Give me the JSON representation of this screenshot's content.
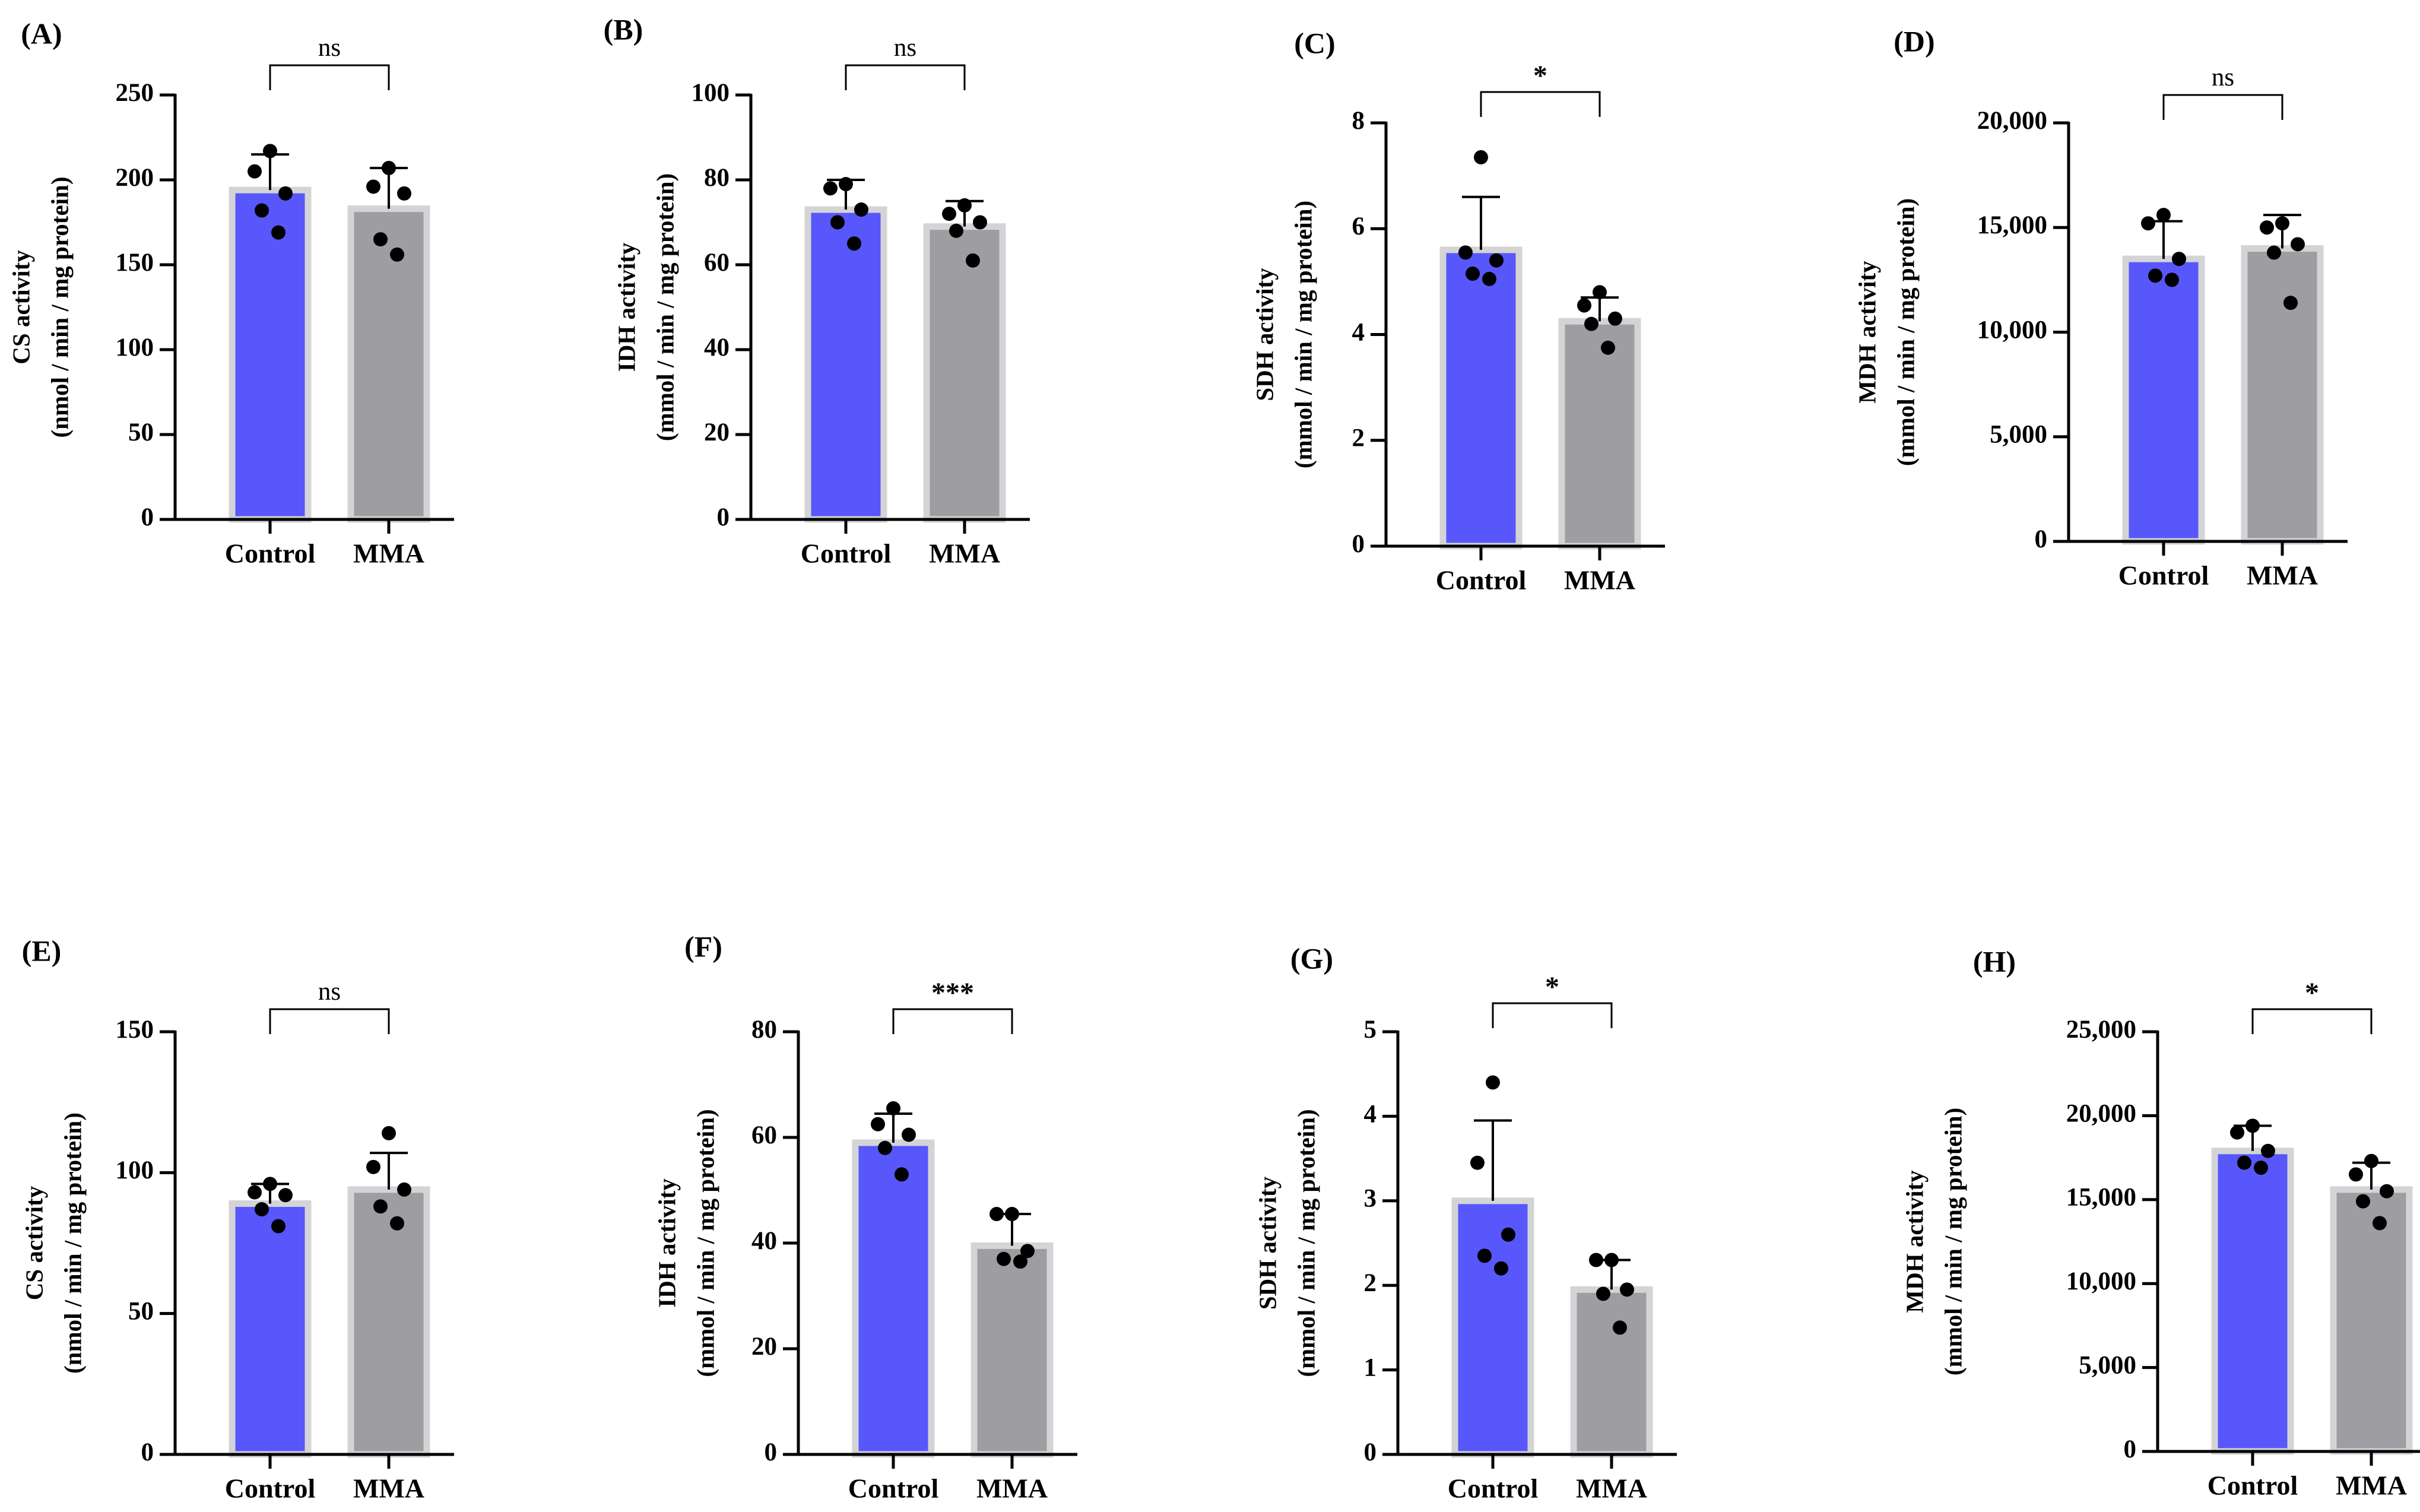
{
  "figure": {
    "colors": {
      "control": "#5757fb",
      "mma": "#9e9ea2",
      "bar_outline": "#d4d4d6",
      "ink": "#000000"
    },
    "panels": [
      {
        "label": "(A)",
        "ylabel1": "CS activity",
        "ylabel2": "(nmol / min / mg protein)",
        "significance": "ns"
      },
      {
        "label": "(B)",
        "ylabel1": "IDH activity",
        "ylabel2": "(mmol / min / mg protein)",
        "significance": "ns"
      },
      {
        "label": "(C)",
        "ylabel1": "SDH activity",
        "ylabel2": "(mmol / min / mg protein)",
        "significance": "*"
      },
      {
        "label": "(D)",
        "ylabel1": "MDH activity",
        "ylabel2": "(mmol / min / mg protein)",
        "significance": "ns"
      },
      {
        "label": "(E)",
        "ylabel1": "CS activity",
        "ylabel2": "(nmol / min / mg protein)",
        "significance": "ns"
      },
      {
        "label": "(F)",
        "ylabel1": "IDH activity",
        "ylabel2": "(mmol / min / mg protein)",
        "significance": "***"
      },
      {
        "label": "(G)",
        "ylabel1": "SDH activity",
        "ylabel2": "(mmol / min / mg protein)",
        "significance": "*"
      },
      {
        "label": "(H)",
        "ylabel1": "MDH activity",
        "ylabel2": "(mmol / min / mg protein)",
        "significance": "*"
      }
    ]
  },
  "chart_data": [
    {
      "type": "bar",
      "panel": "(A)",
      "categories": [
        "Control",
        "MMA"
      ],
      "ylabel": "CS activity (nmol / min / mg protein)",
      "ylim": [
        0,
        250
      ],
      "yticks": [
        0,
        50,
        100,
        150,
        200,
        250
      ],
      "ytick_labels": [
        "0",
        "50",
        "100",
        "150",
        "200",
        "250"
      ],
      "values": [
        194,
        183
      ],
      "sd": [
        21,
        24
      ],
      "points": [
        [
          217,
          205,
          192,
          182,
          169
        ],
        [
          207,
          196,
          192,
          165,
          156
        ]
      ],
      "significance": "ns"
    },
    {
      "type": "bar",
      "panel": "(B)",
      "categories": [
        "Control",
        "MMA"
      ],
      "ylabel": "IDH activity (mmol / min / mg protein)",
      "ylim": [
        0,
        100
      ],
      "yticks": [
        0,
        20,
        40,
        60,
        80,
        100
      ],
      "ytick_labels": [
        "0",
        "20",
        "40",
        "60",
        "80",
        "100"
      ],
      "values": [
        73,
        69
      ],
      "sd": [
        7,
        6
      ],
      "points": [
        [
          79,
          78,
          73,
          70,
          65
        ],
        [
          74,
          72,
          70,
          68,
          61
        ]
      ],
      "significance": "ns"
    },
    {
      "type": "bar",
      "panel": "(C)",
      "categories": [
        "Control",
        "MMA"
      ],
      "ylabel": "SDH activity (mmol / min / mg protein)",
      "ylim": [
        0,
        8
      ],
      "yticks": [
        0,
        2,
        4,
        6,
        8
      ],
      "ytick_labels": [
        "0",
        "2",
        "4",
        "6",
        "8"
      ],
      "values": [
        5.6,
        4.25
      ],
      "sd": [
        1.0,
        0.45
      ],
      "points": [
        [
          7.35,
          5.55,
          5.4,
          5.15,
          5.05
        ],
        [
          4.8,
          4.55,
          4.3,
          4.2,
          3.75
        ]
      ],
      "significance": "*"
    },
    {
      "type": "bar",
      "panel": "(D)",
      "categories": [
        "Control",
        "MMA"
      ],
      "ylabel": "MDH activity (mmol / min / mg protein)",
      "ylim": [
        0,
        20000
      ],
      "yticks": [
        0,
        5000,
        10000,
        15000,
        20000
      ],
      "ytick_labels": [
        "0",
        "5,000",
        "10,000",
        "15,000",
        "20,000"
      ],
      "values": [
        13500,
        14000
      ],
      "sd": [
        1800,
        1600
      ],
      "points": [
        [
          15600,
          15200,
          13500,
          12700,
          12500
        ],
        [
          15200,
          15000,
          14200,
          13800,
          11400
        ]
      ],
      "significance": "ns"
    },
    {
      "type": "bar",
      "panel": "(E)",
      "categories": [
        "Control",
        "MMA"
      ],
      "ylabel": "CS activity (nmol / min / mg protein)",
      "ylim": [
        0,
        150
      ],
      "yticks": [
        0,
        50,
        100,
        150
      ],
      "ytick_labels": [
        "0",
        "50",
        "100",
        "150"
      ],
      "values": [
        89,
        94
      ],
      "sd": [
        7,
        13
      ],
      "points": [
        [
          96,
          93,
          92,
          87,
          81
        ],
        [
          114,
          102,
          94,
          88,
          82
        ]
      ],
      "significance": "ns"
    },
    {
      "type": "bar",
      "panel": "(F)",
      "categories": [
        "Control",
        "MMA"
      ],
      "ylabel": "IDH activity (mmol / min / mg protein)",
      "ylim": [
        0,
        80
      ],
      "yticks": [
        0,
        20,
        40,
        60,
        80
      ],
      "ytick_labels": [
        "0",
        "20",
        "40",
        "60",
        "80"
      ],
      "values": [
        59,
        39.5
      ],
      "sd": [
        5.5,
        6
      ],
      "points": [
        [
          65.5,
          62.5,
          60.5,
          58,
          53
        ],
        [
          45.5,
          45.5,
          38.5,
          37,
          36.5
        ]
      ],
      "significance": "***"
    },
    {
      "type": "bar",
      "panel": "(G)",
      "categories": [
        "Control",
        "MMA"
      ],
      "ylabel": "SDH activity (mmol / min / mg protein)",
      "ylim": [
        0,
        5
      ],
      "yticks": [
        0,
        1,
        2,
        3,
        4,
        5
      ],
      "ytick_labels": [
        "0",
        "1",
        "2",
        "3",
        "4",
        "5"
      ],
      "values": [
        3.0,
        1.95
      ],
      "sd": [
        0.95,
        0.35
      ],
      "points": [
        [
          4.4,
          3.45,
          2.6,
          2.35,
          2.2
        ],
        [
          2.3,
          2.3,
          1.95,
          1.9,
          1.5
        ]
      ],
      "significance": "*"
    },
    {
      "type": "bar",
      "panel": "(H)",
      "categories": [
        "Control",
        "MMA"
      ],
      "ylabel": "MDH activity (mmol / min / mg protein)",
      "ylim": [
        0,
        25000
      ],
      "yticks": [
        0,
        5000,
        10000,
        15000,
        20000,
        25000
      ],
      "ytick_labels": [
        "0",
        "5,000",
        "10,000",
        "15,000",
        "20,000",
        "25,000"
      ],
      "values": [
        17900,
        15600
      ],
      "sd": [
        1500,
        1600
      ],
      "points": [
        [
          19400,
          19000,
          17900,
          17200,
          16900
        ],
        [
          17300,
          16500,
          15500,
          14900,
          13600
        ]
      ],
      "significance": "*"
    }
  ]
}
